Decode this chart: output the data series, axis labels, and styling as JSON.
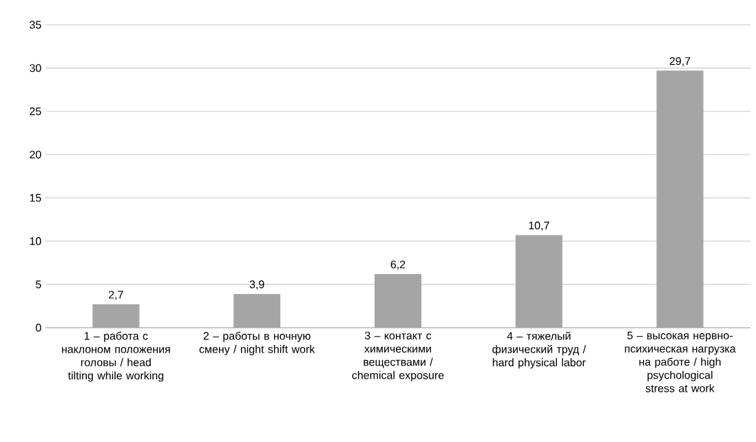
{
  "chart_data": {
    "type": "bar",
    "categories": [
      "1 – работа с наклоном положения головы / head tilting while working",
      "2 – работы в ночную смену / night shift work",
      "3 – контакт с химическими веществами / chemical exposure",
      "4 – тяжелый физический труд / hard physical labor",
      "5 – высокая нервно-психическая нагрузка на работе / high psychological stress at work"
    ],
    "values": [
      2.7,
      3.9,
      6.2,
      10.7,
      29.7
    ],
    "value_labels": [
      "2,7",
      "3,9",
      "6,2",
      "10,7",
      "29,7"
    ],
    "color": "#a5a5a5",
    "ylim": [
      0,
      35
    ],
    "yticks": [
      0,
      5,
      10,
      15,
      20,
      25,
      30,
      35
    ],
    "grid": "y"
  }
}
